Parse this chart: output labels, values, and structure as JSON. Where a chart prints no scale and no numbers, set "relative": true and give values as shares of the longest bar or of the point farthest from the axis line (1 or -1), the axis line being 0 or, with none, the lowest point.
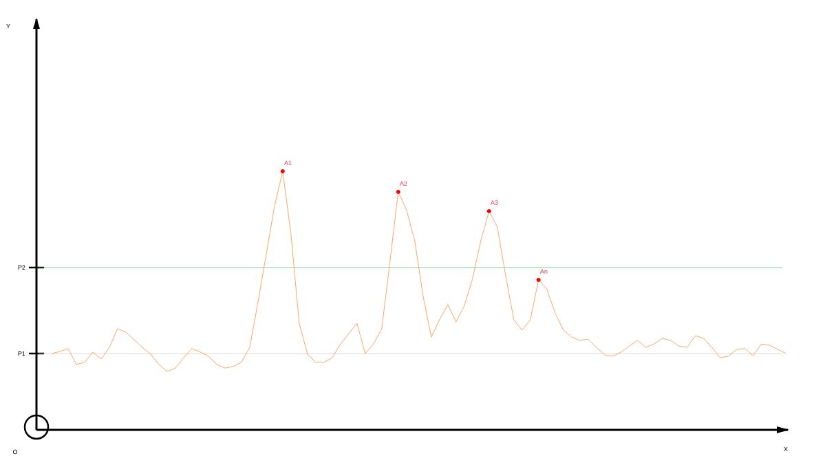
{
  "chart_data": {
    "type": "line",
    "relative": true,
    "color": "#ff7f27",
    "categories": [
      null,
      null,
      null,
      null,
      null,
      null,
      null,
      null,
      null,
      null,
      null,
      null,
      null,
      null,
      null,
      null,
      null,
      null,
      null,
      null,
      null,
      null,
      null,
      null,
      null,
      null,
      null,
      null,
      null,
      null,
      null,
      null,
      null,
      null,
      null,
      null,
      null,
      null,
      null,
      null,
      null,
      null,
      null,
      null,
      null,
      null,
      null,
      null,
      null,
      null,
      null,
      null,
      null,
      null,
      null,
      null,
      null,
      null,
      null,
      null,
      null,
      null,
      null,
      null,
      null,
      null,
      null,
      null,
      null,
      null,
      null,
      null,
      null,
      null,
      null,
      null,
      null,
      null,
      null,
      null,
      null,
      null,
      null,
      null,
      null,
      null,
      null,
      null,
      null,
      null
    ],
    "values": [
      0.295,
      0.303,
      0.314,
      0.253,
      0.261,
      0.301,
      0.274,
      0.319,
      0.391,
      0.378,
      0.348,
      0.319,
      0.293,
      0.253,
      0.226,
      0.239,
      0.279,
      0.314,
      0.301,
      0.285,
      0.253,
      0.239,
      0.245,
      0.261,
      0.319,
      0.492,
      0.678,
      0.864,
      1.0,
      0.758,
      0.412,
      0.293,
      0.261,
      0.261,
      0.279,
      0.332,
      0.372,
      0.412,
      0.295,
      0.332,
      0.391,
      0.652,
      0.92,
      0.851,
      0.731,
      0.519,
      0.359,
      0.426,
      0.484,
      0.418,
      0.479,
      0.585,
      0.731,
      0.846,
      0.785,
      0.598,
      0.426,
      0.386,
      0.426,
      0.58,
      0.545,
      0.452,
      0.386,
      0.359,
      0.346,
      0.351,
      0.319,
      0.29,
      0.285,
      0.301,
      0.324,
      0.346,
      0.319,
      0.332,
      0.354,
      0.346,
      0.324,
      0.319,
      0.364,
      0.354,
      0.319,
      0.279,
      0.285,
      0.311,
      0.314,
      0.287,
      0.332,
      0.327,
      0.311,
      0.295
    ],
    "ref_lines": [
      {
        "axis": "y",
        "value": 0.295,
        "label": "P1",
        "color": "#c8bfb8"
      },
      {
        "axis": "y",
        "value": 0.628,
        "label": "P2",
        "color": "#22b14c"
      }
    ],
    "annotations": [
      "Y",
      "O",
      "X",
      {
        "text": "A1",
        "y": 1.0
      },
      {
        "text": "A2",
        "y": 0.92
      },
      {
        "text": "A3",
        "y": 0.846
      },
      {
        "text": "An",
        "y": 0.58
      }
    ]
  }
}
